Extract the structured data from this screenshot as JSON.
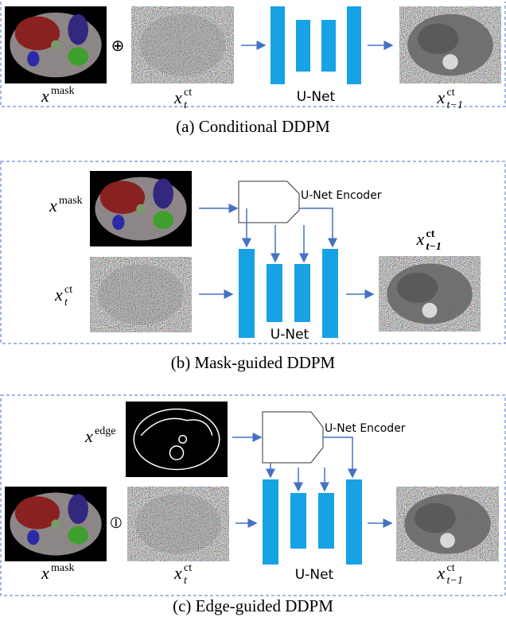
{
  "panels": [
    {
      "caption": "(a) Conditional DDPM",
      "operator": "⊕",
      "unet": "U-Net",
      "labels": [
        {
          "base": "x",
          "sup": "mask"
        },
        {
          "base": "x",
          "sup": "ct",
          "sub": "t"
        },
        {
          "base": "x",
          "sup": "ct",
          "sub": "t−1"
        }
      ]
    },
    {
      "caption": "(b) Mask-guided DDPM",
      "unet": "U-Net",
      "encoder": "U-Net Encoder",
      "labels": [
        {
          "base": "x",
          "sup": "mask"
        },
        {
          "base": "x",
          "sup": "ct",
          "sub": "t"
        },
        {
          "base": "x",
          "sup": "ct",
          "sub": "t−1"
        }
      ]
    },
    {
      "caption": "(c) Edge-guided DDPM",
      "operator": "⦶",
      "unet": "U-Net",
      "encoder": "U-Net Encoder",
      "labels": [
        {
          "base": "x",
          "sup": "edge"
        },
        {
          "base": "x",
          "sup": "mask"
        },
        {
          "base": "x",
          "sup": "ct",
          "sub": "t"
        },
        {
          "base": "x",
          "sup": "ct",
          "sub": "t−1"
        }
      ]
    }
  ]
}
